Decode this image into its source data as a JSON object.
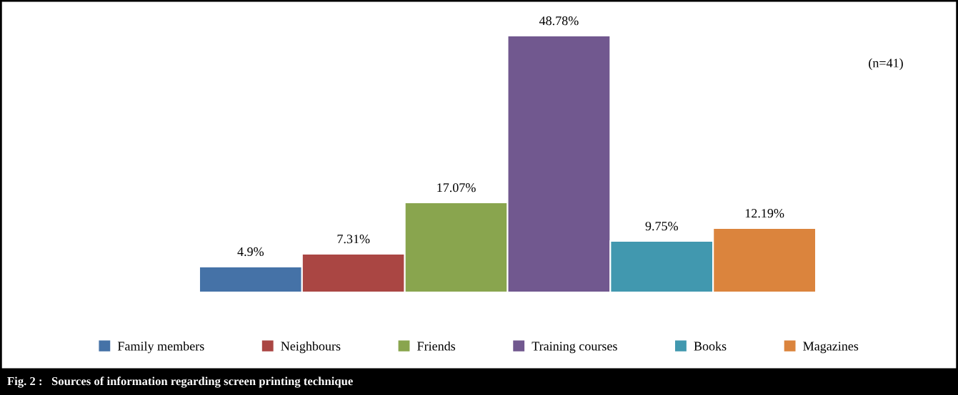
{
  "chart_data": {
    "type": "bar",
    "title": "Fig. 2 :   Sources of information regarding screen printing technique",
    "categories": [
      null
    ],
    "series": [
      {
        "name": "Family members",
        "color": "#4572a7",
        "values": [
          4.9
        ],
        "value_labels": [
          "4.9%"
        ]
      },
      {
        "name": "Neighbours",
        "color": "#aa4643",
        "values": [
          7.31
        ],
        "value_labels": [
          "7.31%"
        ]
      },
      {
        "name": "Friends",
        "color": "#89a54e",
        "values": [
          17.07
        ],
        "value_labels": [
          "17.07%"
        ]
      },
      {
        "name": "Training courses",
        "color": "#71588f",
        "values": [
          48.78
        ],
        "value_labels": [
          "48.78%"
        ]
      },
      {
        "name": "Books",
        "color": "#4198af",
        "values": [
          9.75
        ],
        "value_labels": [
          "9.75%"
        ]
      },
      {
        "name": "Magazines",
        "color": "#db843d",
        "values": [
          12.19
        ],
        "value_labels": [
          "12.19%"
        ]
      }
    ],
    "annotations": [
      "(n=41)"
    ],
    "legend": "bottom"
  }
}
